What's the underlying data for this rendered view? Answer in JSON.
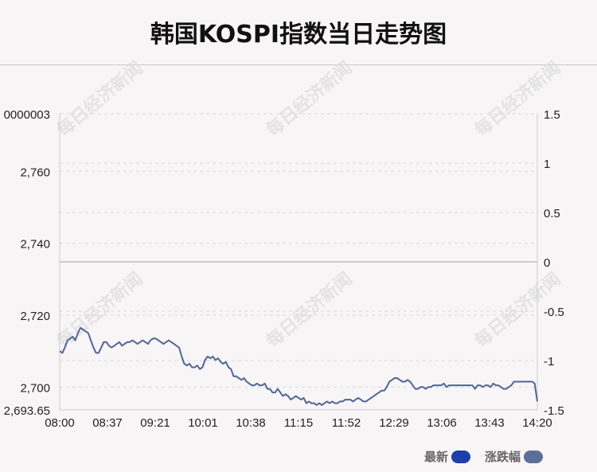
{
  "title": "韩国KOSPI指数当日走势图",
  "watermark": "每日经济新闻",
  "legend": [
    {
      "label": "最新",
      "color": "#1f3fa8"
    },
    {
      "label": "涨跌幅",
      "color": "#5b6f99"
    }
  ],
  "colors": {
    "line": "#4f6593",
    "grid": "#d9d9d9",
    "axis": "#cccccc",
    "zero": "#bfbfbf"
  },
  "chart_data": {
    "type": "line",
    "x_ticks": [
      "08:00",
      "08:37",
      "09:21",
      "10:01",
      "10:38",
      "11:15",
      "11:52",
      "12:29",
      "13:06",
      "13:43",
      "14:20"
    ],
    "y_left_ticks": [
      "2,693.65",
      "2,700",
      "2,720",
      "2,740",
      "2,760",
      "0000003"
    ],
    "y_left_tick_values": [
      2693.65,
      2700,
      2720,
      2740,
      2760,
      2776
    ],
    "y_right_ticks": [
      "-1.5",
      "-1",
      "-0.5",
      "0",
      "0.5",
      "1",
      "1.5"
    ],
    "y_right_tick_values": [
      -1.5,
      -1,
      -0.5,
      0,
      0.5,
      1,
      1.5
    ],
    "ylim_left": [
      2693.65,
      2776
    ],
    "ylim_right": [
      -1.5,
      1.5
    ],
    "grid": true,
    "series": [
      {
        "values": [
          2710,
          2709.5,
          2711,
          2713,
          2713.5,
          2714,
          2713,
          2715,
          2716.5,
          2716,
          2715.5,
          2715,
          2713,
          2711,
          2709.5,
          2709.5,
          2711,
          2712.5,
          2712.5,
          2711.5,
          2711,
          2711.5,
          2712,
          2712.5,
          2711.5,
          2712,
          2712.5,
          2712.5,
          2713,
          2712.5,
          2712,
          2712.5,
          2713,
          2712.5,
          2712,
          2713,
          2713.5,
          2713.5,
          2713,
          2712.5,
          2712,
          2712.5,
          2713,
          2712.5,
          2712,
          2711.5,
          2711,
          2708.5,
          2706.5,
          2706,
          2706.5,
          2705.5,
          2705.5,
          2706,
          2705,
          2705.5,
          2707.5,
          2708.5,
          2708,
          2708.5,
          2707.5,
          2708,
          2707,
          2706.5,
          2707,
          2705.5,
          2705,
          2703,
          2703,
          2702.5,
          2702,
          2702.5,
          2701.5,
          2701,
          2700.5,
          2700.5,
          2701,
          2700.5,
          2700.5,
          2701,
          2699.5,
          2699.5,
          2698.5,
          2698.5,
          2699.5,
          2698.5,
          2697.5,
          2698,
          2697.5,
          2696.5,
          2697,
          2697.5,
          2697,
          2696.5,
          2697,
          2695.5,
          2696,
          2695.5,
          2695.5,
          2695,
          2695.5,
          2695,
          2695.5,
          2696,
          2695.5,
          2696,
          2695.5,
          2695.5,
          2696,
          2696,
          2696.5,
          2696.5,
          2696.5,
          2696,
          2696.5,
          2697,
          2696.5,
          2696,
          2696,
          2696.5,
          2697,
          2697.5,
          2698,
          2698.5,
          2699,
          2699,
          2700,
          2701.5,
          2702,
          2702.5,
          2702.5,
          2702,
          2701.5,
          2701.5,
          2702,
          2701.5,
          2700.5,
          2699.5,
          2699.5,
          2700,
          2700,
          2699.5,
          2700,
          2700,
          2700.5,
          2700.5,
          2700.5,
          2700.5,
          2701,
          2700,
          2700.5,
          2700.5,
          2700.5,
          2700.5,
          2700.5,
          2700.5,
          2700.5,
          2700.5,
          2700.5,
          2700.5,
          2699.5,
          2700.5,
          2700.5,
          2700,
          2700.5,
          2700.5,
          2700,
          2701,
          2700.5,
          2700.5,
          2700,
          2699.5,
          2699.5,
          2700,
          2700.5,
          2701.5,
          2701.5,
          2701.5,
          2701.5,
          2701.5,
          2701.5,
          2701.5,
          2701.5,
          2701,
          2696
        ]
      }
    ]
  }
}
